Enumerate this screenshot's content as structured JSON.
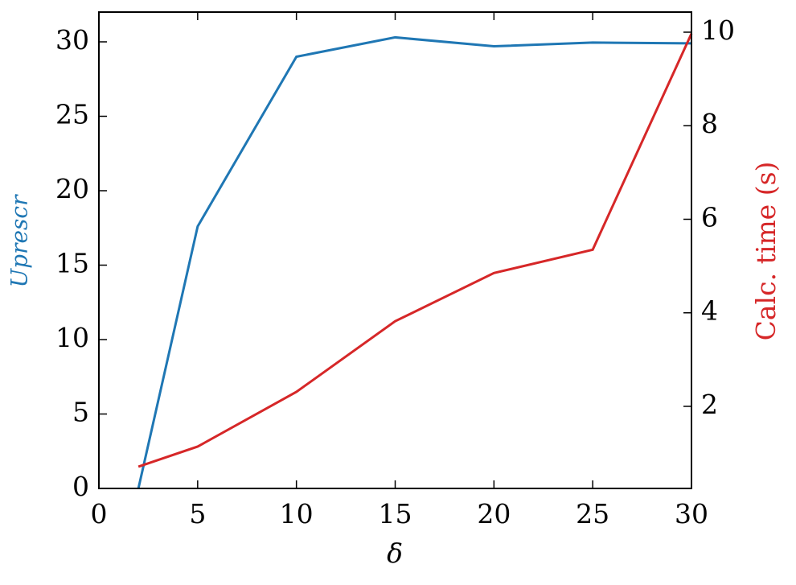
{
  "chart_data": {
    "type": "line",
    "xlabel": "δ",
    "ylabel": "Uprescr",
    "y2label": "Calc. time (s)",
    "x": [
      2,
      5,
      10,
      15,
      20,
      25,
      30
    ],
    "series": [
      {
        "name": "Uprescr",
        "color": "#1f77b4",
        "values": [
          0,
          17.6,
          29.0,
          30.3,
          29.7,
          29.95,
          29.9
        ]
      },
      {
        "name": "Calc. time (s)",
        "color": "#d62728",
        "axis": "y2",
        "values": [
          0.71,
          1.14,
          2.31,
          3.82,
          4.85,
          5.35,
          9.97
        ]
      }
    ],
    "xlim": [
      0,
      30
    ],
    "xticks": [
      0,
      5,
      10,
      15,
      20,
      25,
      30
    ],
    "ylim": [
      0,
      32
    ],
    "yticks": [
      0,
      5,
      10,
      15,
      20,
      25,
      30
    ],
    "y2lim": [
      0.245,
      10.43
    ],
    "y2ticks": [
      2,
      4,
      6,
      8,
      10
    ]
  }
}
